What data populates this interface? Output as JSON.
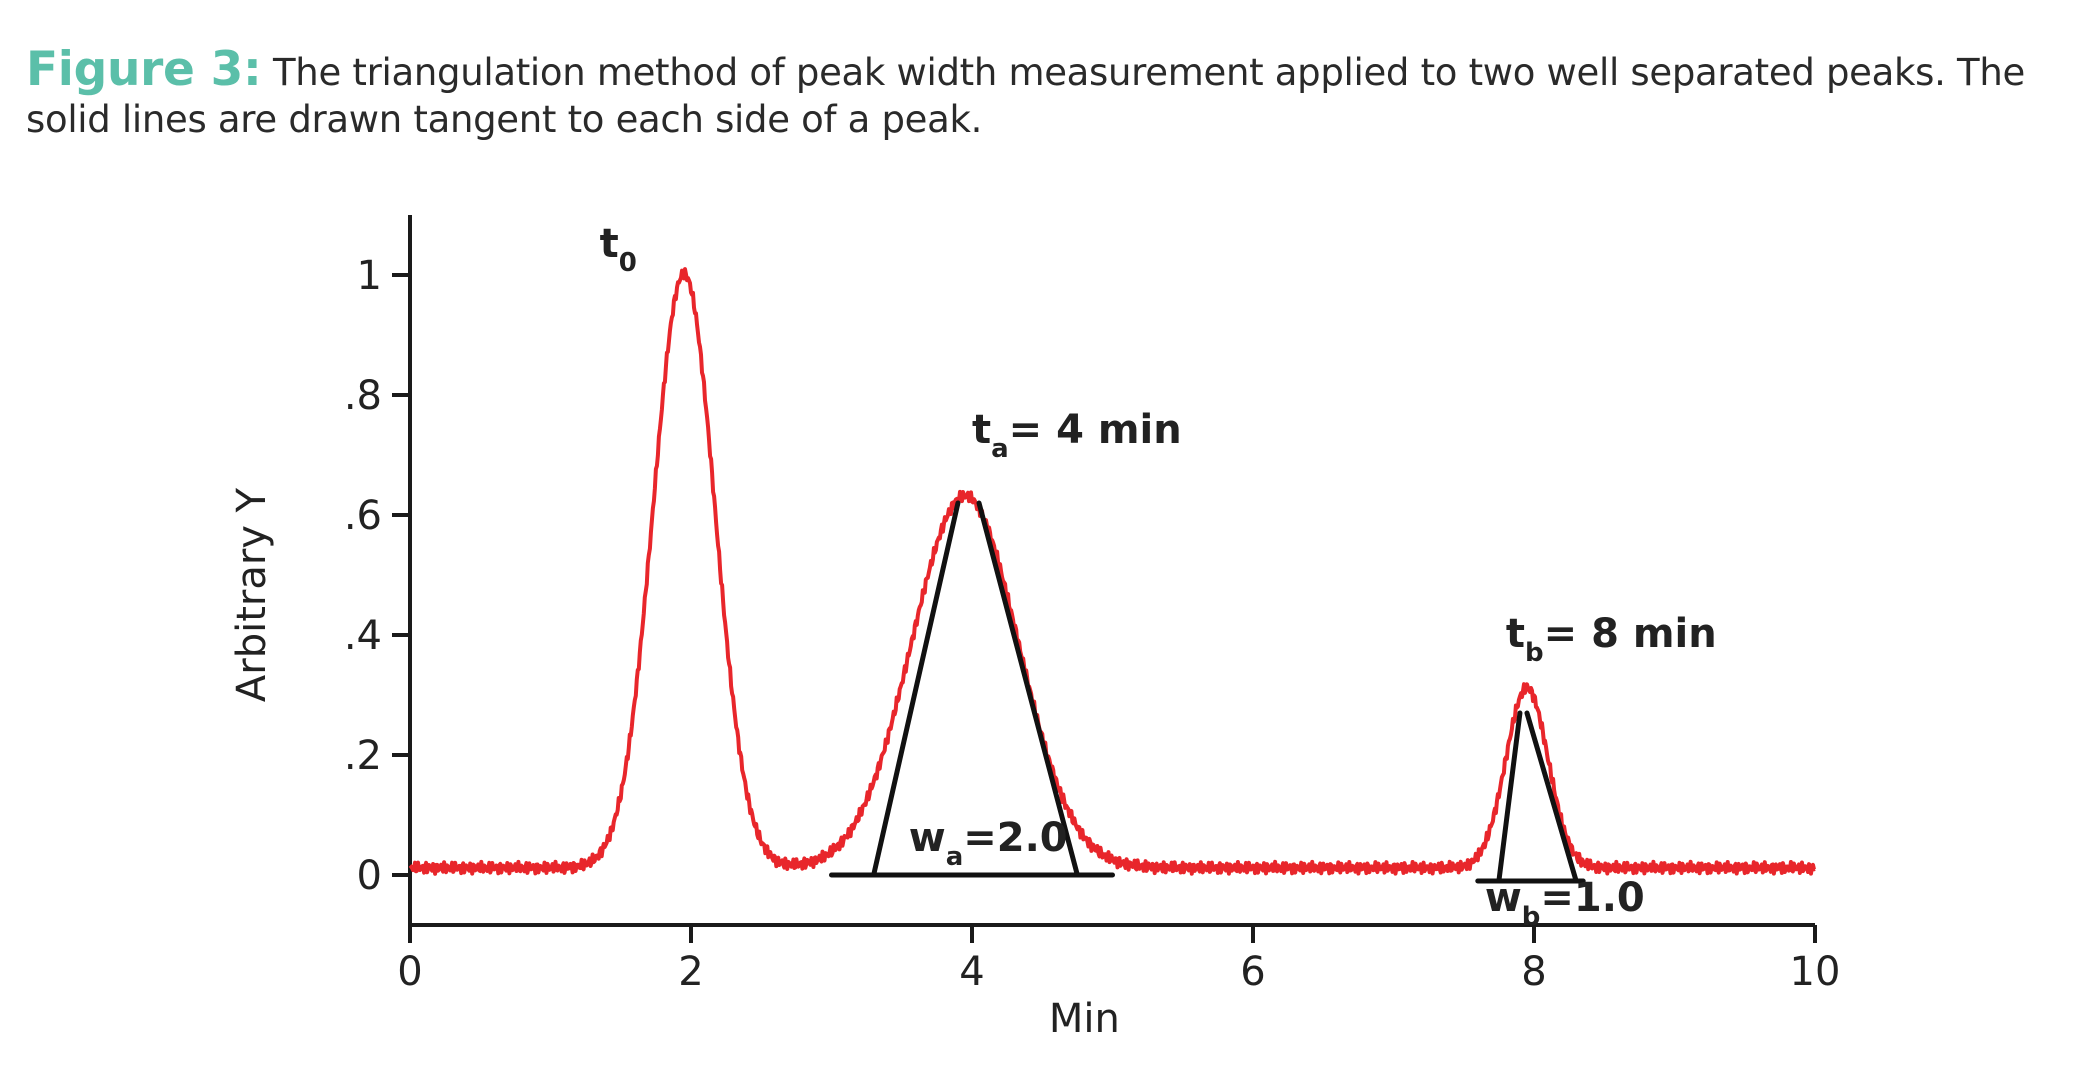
{
  "caption": {
    "lead": "Figure 3:",
    "text": " The triangulation method of peak width measurement applied to two well separated peaks. The solid lines are drawn tangent to each side of a peak."
  },
  "chart_data": {
    "type": "line",
    "title": "",
    "xlabel": "Min",
    "ylabel": "Arbitrary Y",
    "xlim": [
      0,
      10
    ],
    "ylim": [
      -0.08,
      1.1
    ],
    "x_ticks": [
      0,
      2,
      4,
      6,
      8,
      10
    ],
    "x_tick_labels": [
      "0",
      "2",
      "4",
      "6",
      "8",
      "10"
    ],
    "y_ticks": [
      0,
      0.2,
      0.4,
      0.6,
      0.8,
      1.0
    ],
    "y_tick_labels": [
      "0",
      ".2",
      ".4",
      ".6",
      ".8",
      "1"
    ],
    "grid": false,
    "series": [
      {
        "name": "signal",
        "color": "#e8262b",
        "baseline": 0.012,
        "peaks": [
          {
            "center": 1.95,
            "height": 0.99,
            "sigma": 0.22
          },
          {
            "center": 3.95,
            "height": 0.62,
            "sigma": 0.38
          },
          {
            "center": 7.95,
            "height": 0.3,
            "sigma": 0.15
          }
        ],
        "x_range": [
          0,
          10
        ]
      }
    ],
    "tangent_lines": [
      {
        "name": "peak-a-left-tangent",
        "x": [
          3.3,
          3.9
        ],
        "y": [
          0.0,
          0.62
        ]
      },
      {
        "name": "peak-a-right-tangent",
        "x": [
          4.05,
          4.75
        ],
        "y": [
          0.62,
          0.0
        ]
      },
      {
        "name": "peak-a-baseline",
        "x": [
          3.0,
          5.0
        ],
        "y": [
          0.0,
          0.0
        ]
      },
      {
        "name": "peak-b-left-tangent",
        "x": [
          7.75,
          7.9
        ],
        "y": [
          -0.01,
          0.27
        ]
      },
      {
        "name": "peak-b-right-tangent",
        "x": [
          7.95,
          8.3
        ],
        "y": [
          0.27,
          -0.01
        ]
      },
      {
        "name": "peak-b-baseline",
        "x": [
          7.6,
          8.35
        ],
        "y": [
          -0.01,
          -0.01
        ]
      }
    ],
    "annotations": [
      {
        "name": "t0-label",
        "main": "t",
        "sub": "0",
        "rest": "",
        "x": 1.35,
        "y": 1.03
      },
      {
        "name": "ta-label",
        "main": "t",
        "sub": "a",
        "rest": "= 4 min",
        "x": 4.0,
        "y": 0.72
      },
      {
        "name": "tb-label",
        "main": "t",
        "sub": "b",
        "rest": "= 8 min",
        "x": 7.8,
        "y": 0.38
      },
      {
        "name": "wa-label",
        "main": "w",
        "sub": "a",
        "rest": "=2.0",
        "x": 3.55,
        "y": 0.04
      },
      {
        "name": "wb-label",
        "main": "w",
        "sub": "b",
        "rest": "=1.0",
        "x": 7.65,
        "y": -0.06
      }
    ],
    "colors": {
      "line": "#e8262b",
      "axis": "#1a1a1a",
      "tangent": "#111111"
    }
  }
}
